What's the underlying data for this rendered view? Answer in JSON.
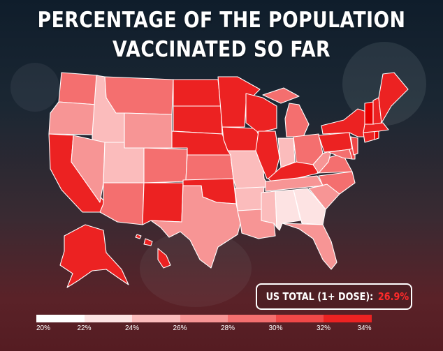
{
  "title": {
    "line1": "PERCENTAGE OF THE POPULATION",
    "line2": "VACCINATED SO FAR"
  },
  "total": {
    "label": "US TOTAL (1+ DOSE):",
    "value": "26.9%",
    "value_color": "#ff2a2a"
  },
  "legend": {
    "labels": [
      "20%",
      "22%",
      "24%",
      "26%",
      "28%",
      "30%",
      "32%",
      "34%"
    ],
    "colors": [
      "#ffffff",
      "#fde3e3",
      "#fbbcbc",
      "#f79595",
      "#f46f6f",
      "#f04848",
      "#ec2222",
      "#e80000"
    ]
  },
  "map_colors": {
    "border": "#ffffff",
    "lightest": "#fde3e3",
    "light": "#f8b2b2",
    "mid_light": "#f79595",
    "mid": "#f46f6f",
    "mid_dark": "#f04848",
    "dark": "#ec2222",
    "darkest": "#e80000"
  }
}
